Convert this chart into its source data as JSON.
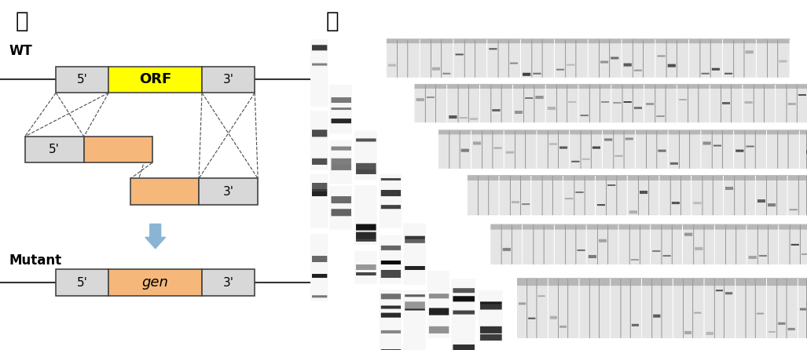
{
  "ga_label": "가",
  "na_label": "나",
  "wt_label": "WT",
  "mutant_label": "Mutant",
  "orf_label": "ORF",
  "five_prime": "5'",
  "three_prime": "3'",
  "gen_label": "gen",
  "background_color": "#ffffff",
  "box_border_color": "#444444",
  "wt_orf_color": "#ffff00",
  "split_marker_color": "#f5b87a",
  "wt_flank_color": "#d8d8d8",
  "mutant_orf_color": "#f5b87a",
  "arrow_color": "#8ab4d4",
  "dashed_line_color": "#555555",
  "line_color": "#333333"
}
